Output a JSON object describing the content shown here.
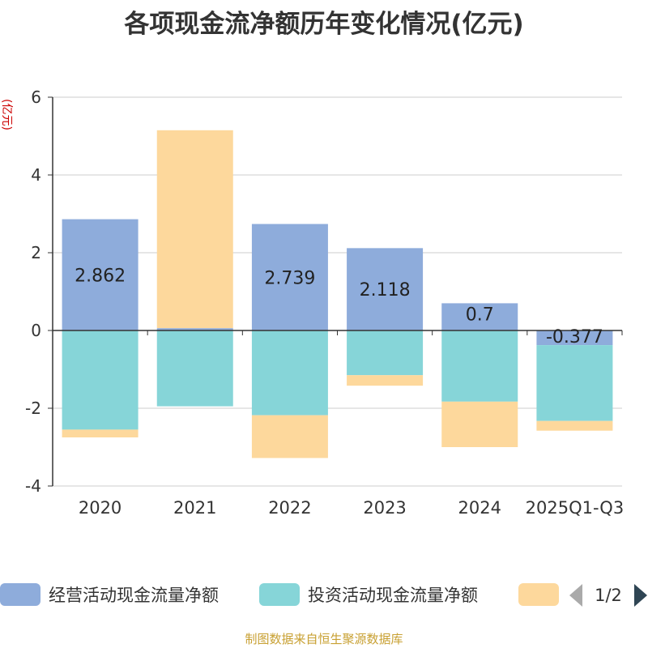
{
  "chart_data": {
    "type": "bar",
    "stacked": true,
    "title": "各项现金流净额历年变化情况(亿元)",
    "ylabel": "(亿元)",
    "ylim": [
      -4,
      6
    ],
    "yticks": [
      -4,
      -2,
      0,
      2,
      4,
      6
    ],
    "grid": true,
    "categories": [
      "2020",
      "2021",
      "2022",
      "2023",
      "2024",
      "2025Q1-Q3"
    ],
    "series": [
      {
        "name": "经营活动现金流量净额",
        "color": "#8eacdb",
        "values": [
          2.862,
          0.06,
          2.739,
          2.118,
          0.7,
          -0.377
        ],
        "labels": [
          "2.862",
          "",
          "2.739",
          "2.118",
          "0.7",
          "-0.377"
        ]
      },
      {
        "name": "投资活动现金流量净额",
        "color": "#86d5d8",
        "values": [
          -2.55,
          -1.95,
          -2.18,
          -1.15,
          -1.83,
          -1.95
        ]
      },
      {
        "name": "",
        "color": "#fdd89c",
        "values": [
          -0.2,
          5.09,
          -1.1,
          -0.27,
          -1.17,
          -0.25
        ]
      }
    ],
    "legend": {
      "position": "bottom",
      "page": "1/2"
    }
  },
  "source": "制图数据来自恒生聚源数据库"
}
